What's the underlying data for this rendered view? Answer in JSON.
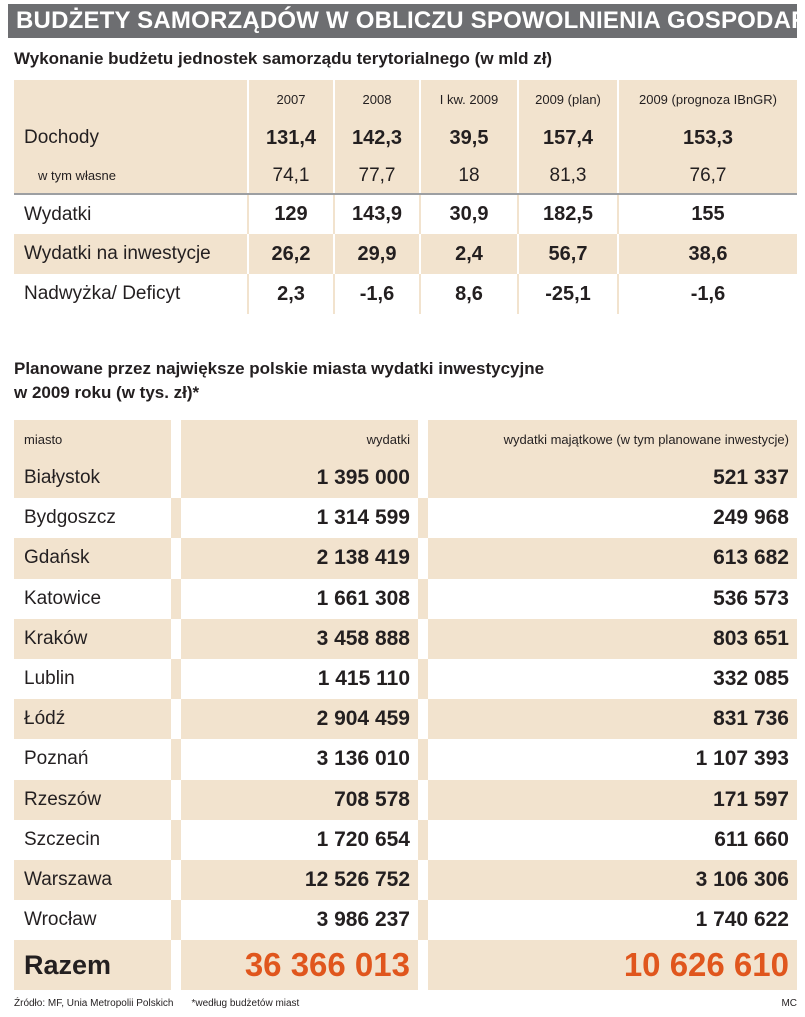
{
  "banner": "BUDŻETY SAMORZĄDÓW W OBLICZU SPOWOLNIENIA GOSPODARCZEGO",
  "chart_data": [
    {
      "type": "table",
      "title": "Wykonanie budżetu jednostek samorządu terytorialnego (w mld zł)",
      "columns": [
        "",
        "2007",
        "2008",
        "I kw. 2009",
        "2009 (plan)",
        "2009 (prognoza IBnGR)"
      ],
      "rows": [
        {
          "label": "Dochody",
          "values": [
            "131,4",
            "142,3",
            "39,5",
            "157,4",
            "153,3"
          ]
        },
        {
          "label": "w tym własne",
          "values": [
            "74,1",
            "77,7",
            "18",
            "81,3",
            "76,7"
          ]
        },
        {
          "label": "Wydatki",
          "values": [
            "129",
            "143,9",
            "30,9",
            "182,5",
            "155"
          ]
        },
        {
          "label": "Wydatki na inwestycje",
          "values": [
            "26,2",
            "29,9",
            "2,4",
            "56,7",
            "38,6"
          ]
        },
        {
          "label": "Nadwyżka/ Deficyt",
          "values": [
            "2,3",
            "-1,6",
            "8,6",
            "-25,1",
            "-1,6"
          ]
        }
      ]
    },
    {
      "type": "table",
      "title_line1": "Planowane przez największe polskie miasta wydatki inwestycyjne",
      "title_line2": "w 2009 roku (w tys. zł)*",
      "columns": [
        "miasto",
        "wydatki",
        "wydatki majątkowe (w tym planowane inwestycje)"
      ],
      "rows": [
        {
          "city": "Białystok",
          "wydatki": "1 395 000",
          "majatkowe": "521 337"
        },
        {
          "city": "Bydgoszcz",
          "wydatki": "1 314 599",
          "majatkowe": "249 968"
        },
        {
          "city": "Gdańsk",
          "wydatki": "2 138 419",
          "majatkowe": "613 682"
        },
        {
          "city": "Katowice",
          "wydatki": "1 661 308",
          "majatkowe": "536 573"
        },
        {
          "city": "Kraków",
          "wydatki": "3 458 888",
          "majatkowe": "803 651"
        },
        {
          "city": "Lublin",
          "wydatki": "1 415 110",
          "majatkowe": "332 085"
        },
        {
          "city": "Łódź",
          "wydatki": "2 904 459",
          "majatkowe": "831 736"
        },
        {
          "city": "Poznań",
          "wydatki": "3 136 010",
          "majatkowe": "1 107 393"
        },
        {
          "city": "Rzeszów",
          "wydatki": "708 578",
          "majatkowe": "171 597"
        },
        {
          "city": "Szczecin",
          "wydatki": "1 720 654",
          "majatkowe": "611 660"
        },
        {
          "city": "Warszawa",
          "wydatki": "12 526 752",
          "majatkowe": "3 106 306"
        },
        {
          "city": "Wrocław",
          "wydatki": "3 986 237",
          "majatkowe": "1 740 622"
        }
      ],
      "total": {
        "label": "Razem",
        "wydatki": "36 366 013",
        "majatkowe": "10 626 610"
      }
    }
  ],
  "footer": {
    "source": "Źródło: MF, Unia Metropolii Polskich",
    "note": "*według budżetów miast",
    "credit": "MC"
  },
  "colors": {
    "banner": "#6d6e71",
    "band": "#f2e3ce",
    "total": "#e0561d"
  }
}
